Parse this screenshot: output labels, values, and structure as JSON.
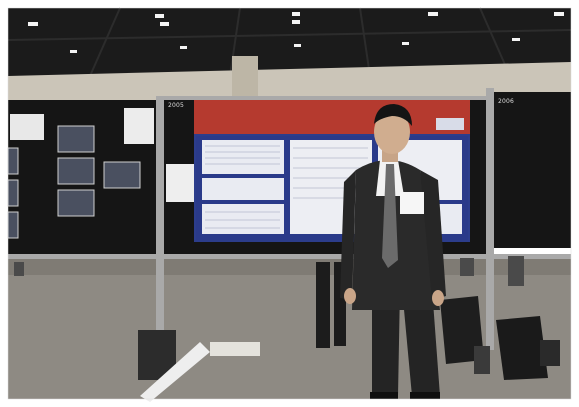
{
  "photo": {
    "scene": "poster-session",
    "boards": {
      "left_number": "",
      "center_number": "2005",
      "right_number": "2006"
    },
    "poster": {
      "title_line_1": "",
      "title_line_2": "",
      "authors_line": ""
    },
    "colors": {
      "ceiling": "#1b1b1b",
      "wall": "#cbc5b8",
      "board": "#151515",
      "poster_blue": "#2c3d8c",
      "poster_red": "#b53a2f",
      "carpet": "#8e8a83",
      "suit": "#2a2a2a"
    }
  }
}
